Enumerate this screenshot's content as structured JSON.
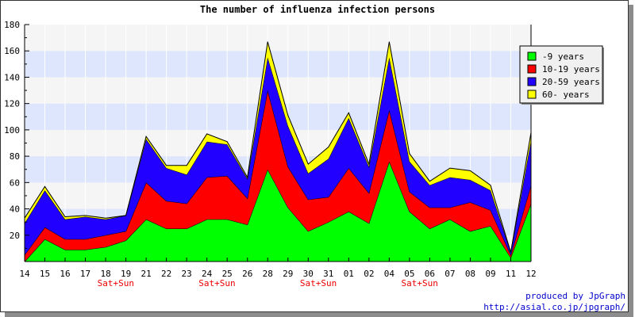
{
  "chart_data": {
    "type": "area",
    "stacked": true,
    "title": "The number of influenza infection persons",
    "categories": [
      "14",
      "15",
      "16",
      "17",
      "18",
      "19",
      "21",
      "22",
      "23",
      "24",
      "25",
      "26",
      "28",
      "29",
      "30",
      "31",
      "01",
      "02",
      "04",
      "05",
      "06",
      "07",
      "08",
      "09",
      "11",
      "12"
    ],
    "weekend_labels": [
      "",
      "",
      "",
      "",
      "Sat+Sun",
      "",
      "",
      "",
      "",
      "Sat+Sun",
      "",
      "",
      "",
      "",
      "Sat+Sun",
      "",
      "",
      "",
      "",
      "Sat+Sun",
      "",
      "",
      "",
      "",
      "",
      ""
    ],
    "ylim": [
      0,
      180
    ],
    "yticks": [
      20,
      40,
      60,
      80,
      100,
      120,
      140,
      160,
      180
    ],
    "grid": "alternating horizontal bands",
    "legend_position": "right",
    "series": [
      {
        "name": "-9 years",
        "color": "#00ff00",
        "values": [
          0,
          17,
          9,
          9,
          11,
          16,
          32,
          25,
          25,
          32,
          32,
          28,
          70,
          41,
          23,
          30,
          38,
          29,
          76,
          38,
          25,
          32,
          23,
          27,
          3,
          44
        ]
      },
      {
        "name": "10-19 years",
        "color": "#ff0000",
        "values": [
          5,
          9,
          8,
          8,
          9,
          7,
          28,
          21,
          19,
          32,
          33,
          20,
          60,
          31,
          24,
          19,
          33,
          23,
          39,
          15,
          16,
          9,
          22,
          12,
          2,
          14
        ]
      },
      {
        "name": "20-59 years",
        "color": "#2200ff",
        "values": [
          24,
          28,
          15,
          17,
          12,
          12,
          33,
          25,
          22,
          27,
          24,
          15,
          25,
          31,
          20,
          29,
          38,
          20,
          40,
          23,
          17,
          23,
          17,
          15,
          2,
          34
        ]
      },
      {
        "name": "60- years",
        "color": "#ffff00",
        "values": [
          4,
          3,
          2,
          1,
          1,
          0,
          2,
          2,
          7,
          6,
          2,
          1,
          12,
          8,
          7,
          9,
          4,
          2,
          12,
          6,
          3,
          7,
          7,
          4,
          0,
          6
        ]
      }
    ]
  },
  "credits": {
    "line1": "produced by JpGraph",
    "line2": "http://asial.co.jp/jpgraph/"
  }
}
